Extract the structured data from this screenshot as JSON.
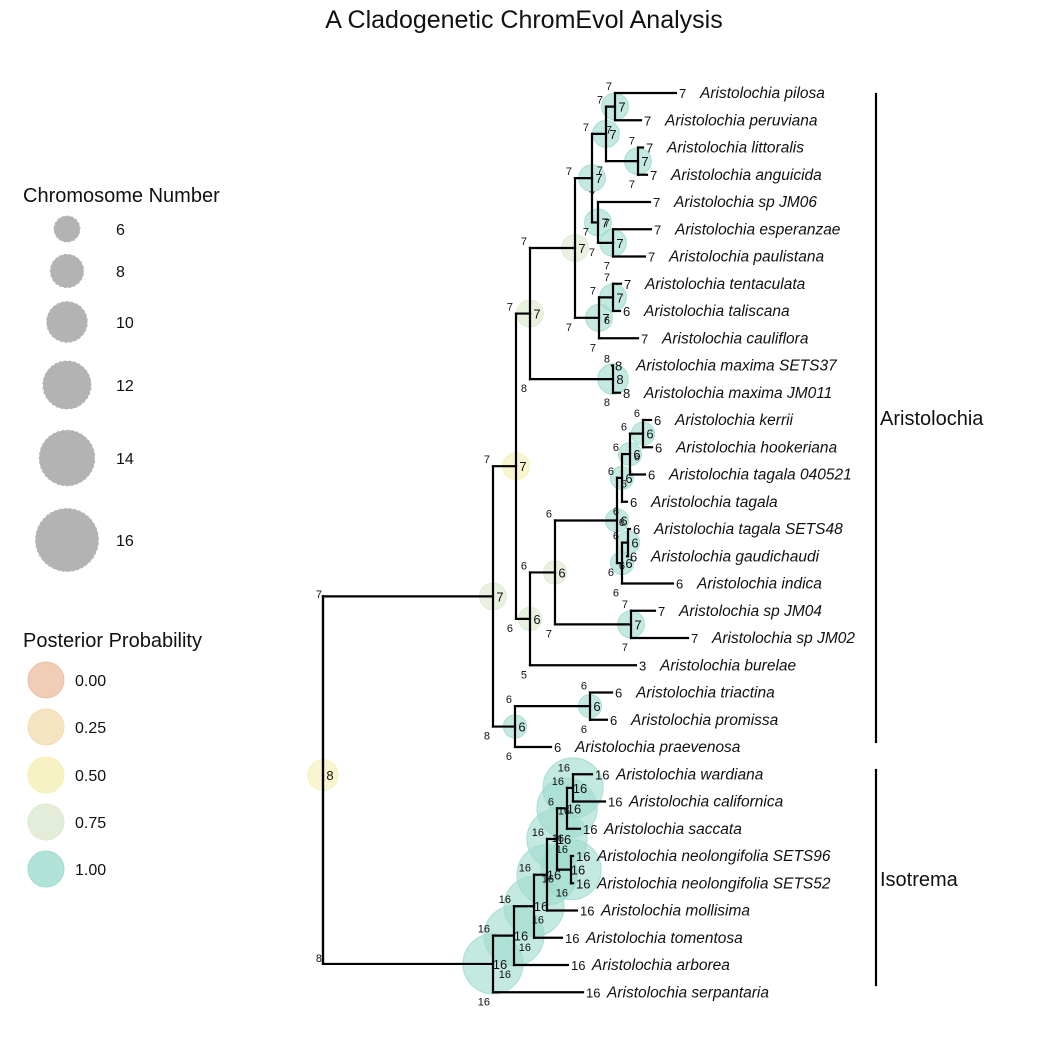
{
  "title": "A Cladogenetic ChromEvol Analysis",
  "colors": {
    "p000": "#ecc0a5",
    "p025": "#f3ddb2",
    "p050": "#f5efb4",
    "p075": "#dce9cf",
    "p100": "#9fdccf",
    "branch": "#000000",
    "sizeLegend": "#b3b3b3"
  },
  "legend_size": {
    "title": "Chromosome Number",
    "labels": [
      "6",
      "8",
      "10",
      "12",
      "14",
      "16"
    ]
  },
  "legend_prob": {
    "title": "Posterior Probability",
    "labels": [
      "0.00",
      "0.25",
      "0.50",
      "0.75",
      "1.00"
    ]
  },
  "clades": [
    {
      "name": "Aristolochia"
    },
    {
      "name": "Isotrema"
    }
  ],
  "tips": [
    {
      "name": "Aristolochia pilosa",
      "n": "7"
    },
    {
      "name": "Aristolochia peruviana",
      "n": "7"
    },
    {
      "name": "Aristolochia littoralis",
      "n": "7"
    },
    {
      "name": "Aristolochia anguicida",
      "n": "7"
    },
    {
      "name": "Aristolochia sp JM06",
      "n": "7"
    },
    {
      "name": "Aristolochia esperanzae",
      "n": "7"
    },
    {
      "name": "Aristolochia paulistana",
      "n": "7"
    },
    {
      "name": "Aristolochia tentaculata",
      "n": "7"
    },
    {
      "name": "Aristolochia taliscana",
      "n": "6"
    },
    {
      "name": "Aristolochia cauliflora",
      "n": "7"
    },
    {
      "name": "Aristolochia maxima SETS37",
      "n": "8"
    },
    {
      "name": "Aristolochia maxima JM011",
      "n": "8"
    },
    {
      "name": "Aristolochia kerrii",
      "n": "6"
    },
    {
      "name": "Aristolochia hookeriana",
      "n": "6"
    },
    {
      "name": "Aristolochia tagala 040521",
      "n": "6"
    },
    {
      "name": "Aristolochia tagala",
      "n": "6"
    },
    {
      "name": "Aristolochia tagala SETS48",
      "n": "6"
    },
    {
      "name": "Aristolochia gaudichaudi",
      "n": "6"
    },
    {
      "name": "Aristolochia indica",
      "n": "6"
    },
    {
      "name": "Aristolochia sp JM04",
      "n": "7"
    },
    {
      "name": "Aristolochia sp JM02",
      "n": "7"
    },
    {
      "name": "Aristolochia burelae",
      "n": "3"
    },
    {
      "name": "Aristolochia triactina",
      "n": "6"
    },
    {
      "name": "Aristolochia promissa",
      "n": "6"
    },
    {
      "name": "Aristolochia praevenosa",
      "n": "6"
    },
    {
      "name": "Aristolochia wardiana",
      "n": "16"
    },
    {
      "name": "Aristolochia californica",
      "n": "16"
    },
    {
      "name": "Aristolochia saccata",
      "n": "16"
    },
    {
      "name": "Aristolochia neolongifolia SETS96",
      "n": "16"
    },
    {
      "name": "Aristolochia neolongifolia SETS52",
      "n": "16"
    },
    {
      "name": "Aristolochia mollisima",
      "n": "16"
    },
    {
      "name": "Aristolochia tomentosa",
      "n": "16"
    },
    {
      "name": "Aristolochia arborea",
      "n": "16"
    },
    {
      "name": "Aristolochia serpantaria",
      "n": "16"
    }
  ],
  "nodes": [
    {
      "id": "root",
      "n": "8",
      "prob": 0.5,
      "left": "",
      "right": ""
    },
    {
      "id": "aristo",
      "n": "7",
      "prob": 0.75,
      "left": "7",
      "right": "8"
    },
    {
      "id": "a1",
      "n": "7",
      "prob": 0.5,
      "left": "7",
      "right": "6"
    },
    {
      "id": "a2",
      "n": "7",
      "prob": 0.75,
      "left": "7",
      "right": "8"
    },
    {
      "id": "a3",
      "n": "7",
      "prob": 0.75,
      "left": "7",
      "right": "7"
    },
    {
      "id": "a4",
      "n": "7",
      "prob": 1.0,
      "left": "7",
      "right": "7"
    },
    {
      "id": "a5",
      "n": "7",
      "prob": 1.0,
      "left": "7",
      "right": "7"
    },
    {
      "id": "n_pil",
      "n": "7",
      "prob": 1.0,
      "left": "7",
      "right": "7"
    },
    {
      "id": "n_lit",
      "n": "7",
      "prob": 1.0,
      "left": "7",
      "right": "7"
    },
    {
      "id": "a6",
      "n": "7",
      "prob": 1.0,
      "left": "7",
      "right": "7"
    },
    {
      "id": "n_esp",
      "n": "7",
      "prob": 1.0,
      "left": "7",
      "right": "7"
    },
    {
      "id": "a7",
      "n": "7",
      "prob": 1.0,
      "left": "7",
      "right": "7"
    },
    {
      "id": "n_ten",
      "n": "7",
      "prob": 1.0,
      "left": "7",
      "right": "6"
    },
    {
      "id": "n_max",
      "n": "8",
      "prob": 1.0,
      "left": "8",
      "right": "8"
    },
    {
      "id": "b1",
      "n": "6",
      "prob": 0.75,
      "left": "6",
      "right": "5"
    },
    {
      "id": "b2",
      "n": "6",
      "prob": 0.75,
      "left": "6",
      "right": "7"
    },
    {
      "id": "b3",
      "n": "6",
      "prob": 1.0,
      "left": "6",
      "right": "6"
    },
    {
      "id": "b4",
      "n": "6",
      "prob": 1.0,
      "left": "6",
      "right": "6"
    },
    {
      "id": "b5",
      "n": "6",
      "prob": 1.0,
      "left": "6",
      "right": "6"
    },
    {
      "id": "n_ker",
      "n": "6",
      "prob": 1.0,
      "left": "6",
      "right": "6"
    },
    {
      "id": "b6",
      "n": "6",
      "prob": 1.0,
      "left": "6",
      "right": "6"
    },
    {
      "id": "n_tsg",
      "n": "6",
      "prob": 1.0,
      "left": "6",
      "right": "6"
    },
    {
      "id": "n_jm",
      "n": "7",
      "prob": 1.0,
      "left": "7",
      "right": "7"
    },
    {
      "id": "c1",
      "n": "6",
      "prob": 1.0,
      "left": "6",
      "right": "6"
    },
    {
      "id": "n_tri",
      "n": "6",
      "prob": 1.0,
      "left": "6",
      "right": "6"
    },
    {
      "id": "i1",
      "n": "16",
      "prob": 1.0,
      "left": "16",
      "right": "16"
    },
    {
      "id": "i2",
      "n": "16",
      "prob": 1.0,
      "left": "16",
      "right": "16"
    },
    {
      "id": "i3",
      "n": "16",
      "prob": 1.0,
      "left": "16",
      "right": "16"
    },
    {
      "id": "i4",
      "n": "16",
      "prob": 1.0,
      "left": "16",
      "right": "16"
    },
    {
      "id": "i5",
      "n": "16",
      "prob": 1.0,
      "left": "6",
      "right": "16"
    },
    {
      "id": "i6",
      "n": "16",
      "prob": 1.0,
      "left": "16",
      "right": "16"
    },
    {
      "id": "n_neo",
      "n": "16",
      "prob": 1.0,
      "left": "16",
      "right": "16"
    },
    {
      "id": "n_war",
      "n": "16",
      "prob": 1.0,
      "left": "16",
      "right": "16"
    }
  ]
}
